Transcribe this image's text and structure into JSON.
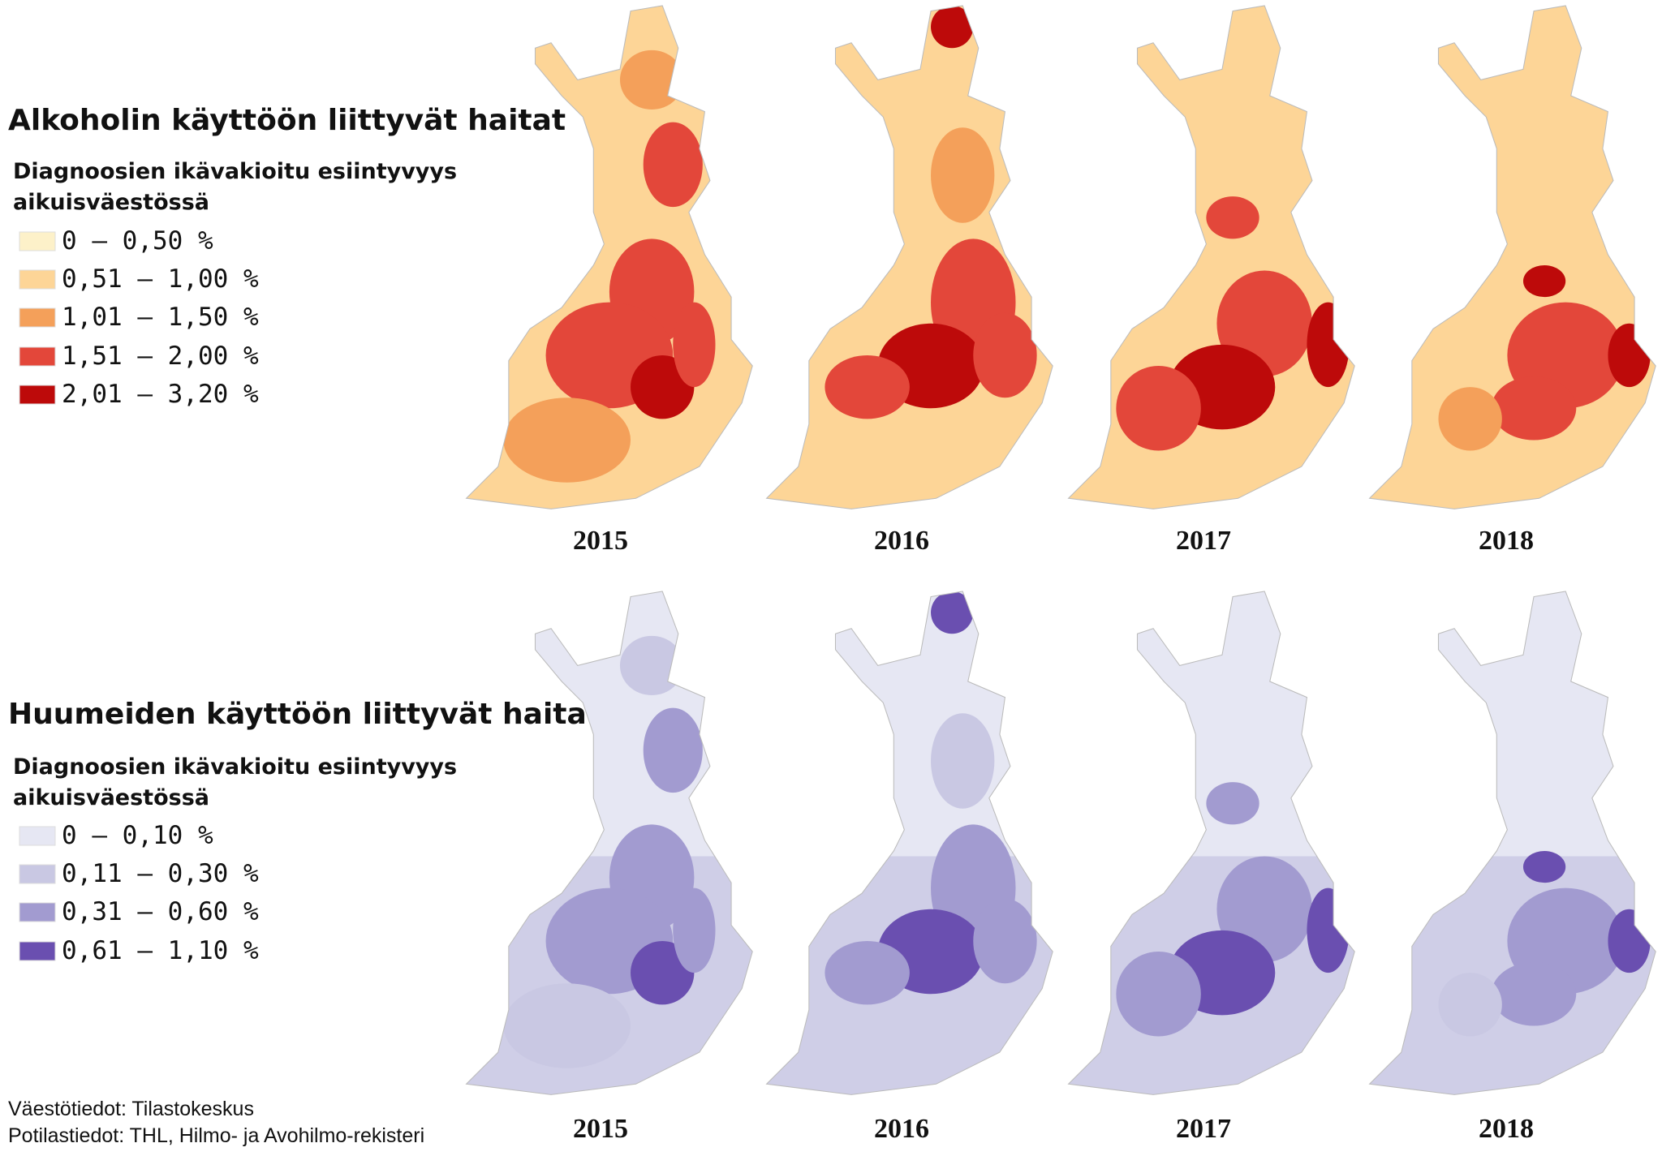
{
  "sections": [
    {
      "title": "Alkoholin käyttöön liittyvät haitat",
      "subtitle_lines": [
        "Diagnoosien ikävakioitu esiintyvyys",
        "aikuisväestössä"
      ],
      "legend": [
        {
          "label": "0 – 0,50 %",
          "color": "#fdf1c9"
        },
        {
          "label": "0,51 – 1,00 %",
          "color": "#fdd597"
        },
        {
          "label": "1,01 – 1,50 %",
          "color": "#f4a05a"
        },
        {
          "label": "1,51 – 2,00 %",
          "color": "#e3473a"
        },
        {
          "label": "2,01 – 3,20 %",
          "color": "#bd0a0a"
        }
      ],
      "years": [
        "2015",
        "2016",
        "2017",
        "2018"
      ]
    },
    {
      "title": "Huumeiden käyttöön liittyvät haitat",
      "subtitle_lines": [
        "Diagnoosien ikävakioitu esiintyvyys",
        "aikuisväestössä"
      ],
      "legend": [
        {
          "label": "0 – 0,10 %",
          "color": "#e6e7f3"
        },
        {
          "label": "0,11 – 0,30 %",
          "color": "#c9c8e3"
        },
        {
          "label": "0,31 – 0,60 %",
          "color": "#a29bd0"
        },
        {
          "label": "0,61 – 1,10 %",
          "color": "#6a4fb0"
        }
      ],
      "years": [
        "2015",
        "2016",
        "2017",
        "2018"
      ]
    }
  ],
  "sources": [
    "Väestötiedot: Tilastokeskus",
    "Potilastiedot: THL, Hilmo- ja Avohilmo-rekisteri"
  ]
}
